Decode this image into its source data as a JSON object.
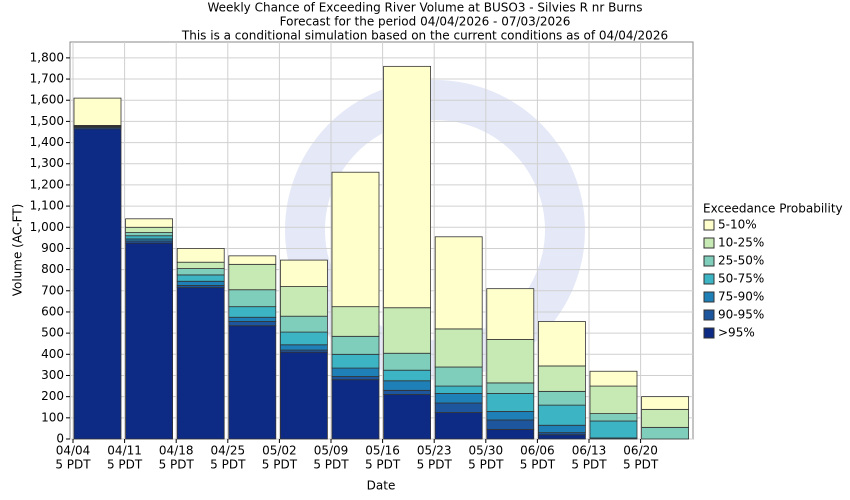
{
  "chart_data": {
    "type": "stacked_bar",
    "title": "Weekly Chance of Exceeding River Volume at BUSO3 - Silvies R nr Burns",
    "subtitle": "Forecast for the period 04/04/2026 - 07/03/2026",
    "subtitle2": "This is a conditional simulation based on the current conditions as of 04/04/2026",
    "x_label": "Date",
    "y_label": "Volume (AC-FT)",
    "legend_title": "Exceedance Probability",
    "categories": [
      "04/04",
      "04/11",
      "04/18",
      "04/25",
      "05/02",
      "05/09",
      "05/16",
      "05/23",
      "05/30",
      "06/06",
      "06/13",
      "06/20"
    ],
    "category_sublabels": [
      "5 PDT",
      "5 PDT",
      "5 PDT",
      "5 PDT",
      "5 PDT",
      "5 PDT",
      "5 PDT",
      "5 PDT",
      "5 PDT",
      "5 PDT",
      "5 PDT",
      "5 PDT"
    ],
    "series": [
      {
        "name": ">95%",
        "color": "#0d2a84",
        "values": [
          1465,
          925,
          715,
          535,
          410,
          280,
          210,
          125,
          45,
          20,
          0,
          0
        ]
      },
      {
        "name": "90-95%",
        "color": "#1d569c",
        "values": [
          7,
          10,
          10,
          20,
          10,
          15,
          20,
          45,
          45,
          10,
          0,
          0
        ]
      },
      {
        "name": "75-90%",
        "color": "#1f80b8",
        "values": [
          3,
          10,
          20,
          20,
          25,
          40,
          45,
          45,
          40,
          35,
          5,
          0
        ]
      },
      {
        "name": "50-75%",
        "color": "#3cb4c4",
        "values": [
          2,
          15,
          30,
          50,
          60,
          65,
          50,
          35,
          85,
          95,
          80,
          0
        ]
      },
      {
        "name": "25-50%",
        "color": "#7fcdbb",
        "values": [
          2,
          15,
          30,
          80,
          75,
          85,
          80,
          90,
          50,
          65,
          35,
          55
        ]
      },
      {
        "name": "10-25%",
        "color": "#c7e9b4",
        "values": [
          2,
          25,
          30,
          120,
          140,
          140,
          215,
          180,
          205,
          120,
          130,
          85
        ]
      },
      {
        "name": "5-10%",
        "color": "#ffffcc",
        "values": [
          129,
          40,
          65,
          40,
          125,
          635,
          1140,
          435,
          240,
          210,
          70,
          60
        ]
      }
    ],
    "ylim": [
      0,
      1875
    ],
    "yticks": [
      0,
      100,
      200,
      300,
      400,
      500,
      600,
      700,
      800,
      900,
      {
        "value": 1000,
        "label": "1,000"
      },
      {
        "value": 1100,
        "label": "1,100"
      },
      {
        "value": 1200,
        "label": "1,200"
      },
      {
        "value": 1300,
        "label": "1,300"
      },
      {
        "value": 1400,
        "label": "1,400"
      },
      {
        "value": 1500,
        "label": "1,500"
      },
      {
        "value": 1600,
        "label": "1,600"
      },
      {
        "value": 1700,
        "label": "1,700"
      },
      {
        "value": 1800,
        "label": "1,800"
      }
    ],
    "grid": true
  }
}
